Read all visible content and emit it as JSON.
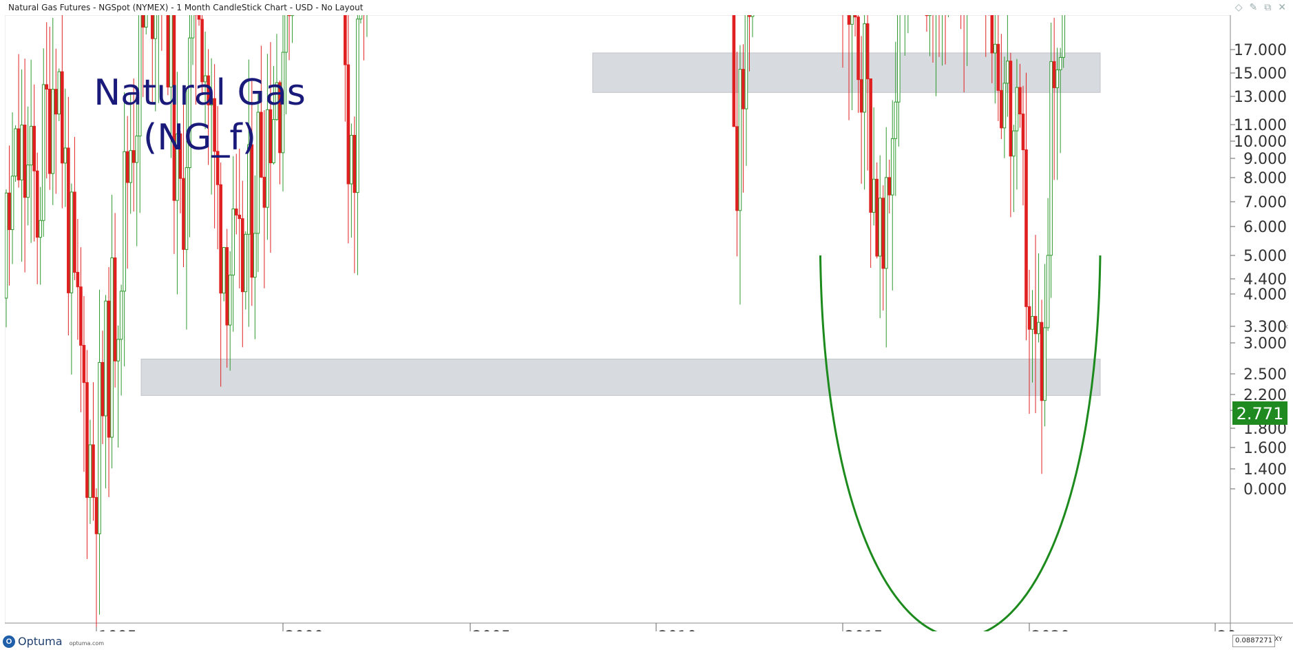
{
  "window": {
    "title": "Natural Gas Futures - NGSpot (NYMEX) - 1 Month CandleStick Chart - USD - No Layout",
    "icons": [
      "diamond-icon",
      "pin-icon",
      "restore-icon",
      "close-icon"
    ]
  },
  "footer": {
    "logo_text": "Optuma",
    "logo_url": "optuma.com",
    "zoom_readout": "0.0887271",
    "xy_label": "XY"
  },
  "colors": {
    "up": "#2e9a2e",
    "down": "#e02020",
    "support_band": "#d3d6dc",
    "arc": "#1c8a1c",
    "annotation": "#1a1a7a",
    "price_tag": "#1f8a1f"
  },
  "chart_data": {
    "type": "candlestick",
    "annotation_lines": [
      "Natural Gas",
      "(NG_f)"
    ],
    "last_price_label": "2.771",
    "x_ticks": [
      "1995",
      "2000",
      "2005",
      "2010",
      "2015",
      "2020",
      "20"
    ],
    "y_ticks": [
      "17.000",
      "15.000",
      "13.000",
      "11.000",
      "10.000",
      "9.000",
      "8.000",
      "7.000",
      "6.000",
      "5.000",
      "4.400",
      "4.000",
      "3.300",
      "3.000",
      "2.500",
      "2.200",
      "2.000",
      "1.800",
      "1.600",
      "1.400",
      "0.000"
    ],
    "support_levels": [
      {
        "from": 2008.3,
        "to": 2021.9,
        "low": 2.42,
        "high": 2.55
      },
      {
        "from": 1996.2,
        "to": 2021.9,
        "low": 1.62,
        "high": 1.7
      }
    ],
    "rounded_bottom_arc": {
      "from": 2014.4,
      "to": 2021.9,
      "left_top": 1.95,
      "right_top": 1.95,
      "bottom": 1.38
    },
    "anchors": [
      [
        1992.0,
        2.3
      ],
      [
        1992.5,
        1.9
      ],
      [
        1993.0,
        2.2
      ],
      [
        1993.5,
        2.1
      ],
      [
        1994.0,
        2.6
      ],
      [
        1994.5,
        1.8
      ],
      [
        1995.0,
        1.45
      ],
      [
        1995.6,
        1.85
      ],
      [
        1996.0,
        2.3
      ],
      [
        1996.5,
        2.8
      ],
      [
        1996.9,
        3.0
      ],
      [
        1997.3,
        2.0
      ],
      [
        1997.8,
        2.9
      ],
      [
        1998.3,
        2.1
      ],
      [
        1998.9,
        1.85
      ],
      [
        1999.5,
        2.3
      ],
      [
        2000.0,
        2.5
      ],
      [
        2000.4,
        3.2
      ],
      [
        2000.8,
        4.5
      ],
      [
        2000.95,
        9.0
      ],
      [
        2001.3,
        5.0
      ],
      [
        2001.7,
        2.5
      ],
      [
        2002.0,
        2.2
      ],
      [
        2002.4,
        3.5
      ],
      [
        2002.9,
        4.3
      ],
      [
        2003.1,
        6.0
      ],
      [
        2003.6,
        5.0
      ],
      [
        2004.0,
        5.5
      ],
      [
        2004.5,
        6.2
      ],
      [
        2004.8,
        7.5
      ],
      [
        2005.3,
        7.0
      ],
      [
        2005.7,
        13.0
      ],
      [
        2006.0,
        9.0
      ],
      [
        2006.5,
        6.5
      ],
      [
        2006.9,
        6.8
      ],
      [
        2007.3,
        7.3
      ],
      [
        2007.7,
        6.8
      ],
      [
        2008.0,
        8.5
      ],
      [
        2008.5,
        12.5
      ],
      [
        2008.8,
        7.5
      ],
      [
        2009.2,
        4.2
      ],
      [
        2009.6,
        3.6
      ],
      [
        2009.9,
        5.5
      ],
      [
        2010.3,
        4.2
      ],
      [
        2010.8,
        3.8
      ],
      [
        2011.3,
        4.3
      ],
      [
        2011.7,
        3.9
      ],
      [
        2012.3,
        2.2
      ],
      [
        2012.8,
        3.5
      ],
      [
        2013.3,
        4.0
      ],
      [
        2013.8,
        3.8
      ],
      [
        2014.2,
        4.6
      ],
      [
        2014.6,
        3.9
      ],
      [
        2015.0,
        2.9
      ],
      [
        2015.5,
        2.7
      ],
      [
        2015.9,
        2.2
      ],
      [
        2016.2,
        1.85
      ],
      [
        2016.6,
        2.8
      ],
      [
        2016.9,
        3.3
      ],
      [
        2017.3,
        3.0
      ],
      [
        2017.8,
        2.9
      ],
      [
        2018.3,
        2.8
      ],
      [
        2018.8,
        3.6
      ],
      [
        2019.1,
        2.7
      ],
      [
        2019.5,
        2.4
      ],
      [
        2019.9,
        2.1
      ],
      [
        2020.2,
        1.7
      ],
      [
        2020.5,
        1.75
      ],
      [
        2020.7,
        2.6
      ],
      [
        2020.9,
        2.6
      ]
    ]
  }
}
